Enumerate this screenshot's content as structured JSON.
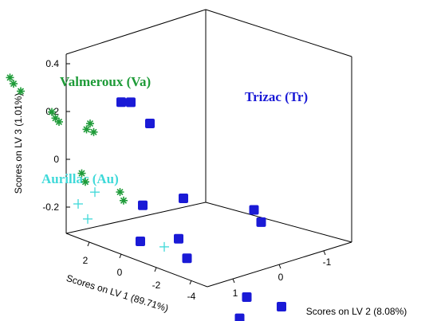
{
  "chart_data": {
    "type": "scatter3d",
    "title": "",
    "x_axis": {
      "label": "Scores on LV 1 (89.71%)",
      "ticks": [
        "2",
        "0",
        "-2",
        "-4"
      ]
    },
    "y_axis": {
      "label": "Scores on LV 2 (8.08%)",
      "ticks": [
        "1",
        "0",
        "-1"
      ]
    },
    "z_axis": {
      "label": "Scores on LV 3 (1.01%)",
      "ticks": [
        "0.4",
        "0.2",
        "0",
        "-0.2"
      ]
    },
    "grid": false,
    "series": [
      {
        "name": "Valmeroux (Va)",
        "color": "#1e9b38",
        "marker": "asterisk",
        "points": [
          {
            "lv1": 1.0,
            "lv2": 1.8,
            "lv3": 0.32
          },
          {
            "lv1": 0.9,
            "lv2": 1.8,
            "lv3": 0.3
          },
          {
            "lv1": 0.7,
            "lv2": 1.8,
            "lv3": 0.28
          },
          {
            "lv1": 0.0,
            "lv2": 1.7,
            "lv3": 0.24
          },
          {
            "lv1": -0.1,
            "lv2": 1.7,
            "lv3": 0.22
          },
          {
            "lv1": -0.2,
            "lv2": 1.7,
            "lv3": 0.21
          },
          {
            "lv1": -0.8,
            "lv2": 1.6,
            "lv3": 0.22
          },
          {
            "lv1": -0.9,
            "lv2": 1.6,
            "lv3": 0.25
          },
          {
            "lv1": -1.0,
            "lv2": 1.6,
            "lv3": 0.22
          },
          {
            "lv1": 0.0,
            "lv2": 1.2,
            "lv3": 0.02
          },
          {
            "lv1": -0.1,
            "lv2": 1.2,
            "lv3": -0.01
          },
          {
            "lv1": -0.9,
            "lv2": 1.1,
            "lv3": 0.0
          },
          {
            "lv1": -1.0,
            "lv2": 1.1,
            "lv3": -0.03
          }
        ]
      },
      {
        "name": "Aurillac (Au)",
        "color": "#3fd9d9",
        "marker": "plus",
        "points": [
          {
            "lv1": 0.6,
            "lv2": 0.9,
            "lv3": -0.12
          },
          {
            "lv1": 0.5,
            "lv2": 0.8,
            "lv3": -0.17
          },
          {
            "lv1": -0.2,
            "lv2": 1.1,
            "lv3": -0.04
          },
          {
            "lv1": -1.3,
            "lv2": 0.6,
            "lv3": -0.17
          }
        ]
      },
      {
        "name": "Trizac (Tr)",
        "color": "#1a1ad6",
        "marker": "square",
        "points": [
          {
            "lv1": -0.2,
            "lv2": 0.5,
            "lv3": 0.38
          },
          {
            "lv1": -1.1,
            "lv2": 1.2,
            "lv3": 0.38
          },
          {
            "lv1": -1.4,
            "lv2": 0.9,
            "lv3": 0.33
          },
          {
            "lv1": 0.0,
            "lv2": -0.5,
            "lv3": 0.04
          },
          {
            "lv1": -0.7,
            "lv2": 0.6,
            "lv3": -0.03
          },
          {
            "lv1": -1.2,
            "lv2": 0.3,
            "lv3": -0.12
          },
          {
            "lv1": -3.3,
            "lv2": 0.3,
            "lv3": 0.12
          },
          {
            "lv1": -3.5,
            "lv2": 0.3,
            "lv3": 0.08
          },
          {
            "lv1": -1.8,
            "lv2": 1.3,
            "lv3": -0.17
          },
          {
            "lv1": -2.1,
            "lv2": 0.7,
            "lv3": -0.18
          },
          {
            "lv1": -3.6,
            "lv2": 0.6,
            "lv3": -0.25
          },
          {
            "lv1": -3.4,
            "lv2": -0.1,
            "lv3": -0.25
          },
          {
            "lv1": -3.4,
            "lv2": 0.6,
            "lv3": -0.35
          }
        ]
      }
    ]
  }
}
